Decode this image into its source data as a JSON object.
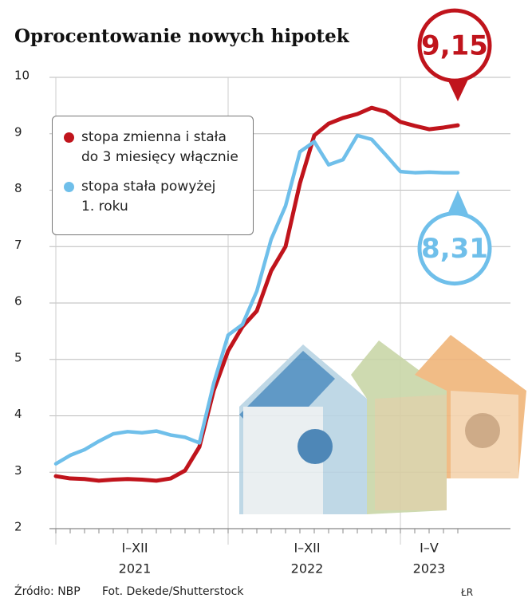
{
  "title": "Oprocentowanie nowych hipotek",
  "source": "Źródło: NBP",
  "photo_credit": "Fot. Dekede/Shutterstock",
  "author": "ŁR",
  "chart_data": {
    "type": "line",
    "categories": [
      "2021",
      "2021",
      "2021",
      "2021",
      "2021",
      "2021",
      "2021",
      "2021",
      "2021",
      "2021",
      "2021",
      "2021",
      "2022",
      "2022",
      "2022",
      "2022",
      "2022",
      "2022",
      "2022",
      "2022",
      "2022",
      "2022",
      "2022",
      "2022",
      "2023",
      "2023",
      "2023",
      "2023",
      "2023"
    ],
    "period_labels": [
      "I–XII",
      "I–XII",
      "I–V"
    ],
    "ylim": [
      2,
      10
    ],
    "yticks": [
      2,
      3,
      4,
      5,
      6,
      7,
      8,
      9,
      10
    ],
    "grid": true,
    "series": [
      {
        "name": "stopa zmienna i stała do 3 miesięcy włącznie",
        "color": "#c0141c",
        "values": [
          2.93,
          2.89,
          2.88,
          2.85,
          2.87,
          2.88,
          2.87,
          2.85,
          2.89,
          3.03,
          3.45,
          4.45,
          5.15,
          5.58,
          5.86,
          6.57,
          7.0,
          8.12,
          8.97,
          9.18,
          9.28,
          9.35,
          9.46,
          9.39,
          9.21,
          9.14,
          9.08,
          9.11,
          9.15
        ],
        "value_labels": [
          null,
          null,
          null,
          null,
          null,
          null,
          null,
          null,
          null,
          null,
          null,
          null,
          null,
          null,
          null,
          null,
          null,
          null,
          null,
          null,
          null,
          null,
          null,
          null,
          null,
          null,
          null,
          null,
          "9,15"
        ]
      },
      {
        "name": "stopa stała powyżej 1. roku",
        "color": "#6fbfea",
        "values": [
          3.15,
          3.3,
          3.4,
          3.55,
          3.68,
          3.72,
          3.7,
          3.73,
          3.66,
          3.62,
          3.52,
          4.58,
          5.43,
          5.62,
          6.21,
          7.13,
          7.72,
          8.68,
          8.86,
          8.45,
          8.54,
          8.97,
          8.9,
          8.62,
          8.33,
          8.31,
          8.32,
          8.31,
          8.31
        ],
        "value_labels": [
          null,
          null,
          null,
          null,
          null,
          null,
          null,
          null,
          null,
          null,
          null,
          null,
          null,
          null,
          null,
          null,
          null,
          null,
          null,
          null,
          null,
          null,
          null,
          null,
          null,
          null,
          null,
          null,
          "8,31"
        ]
      }
    ]
  }
}
